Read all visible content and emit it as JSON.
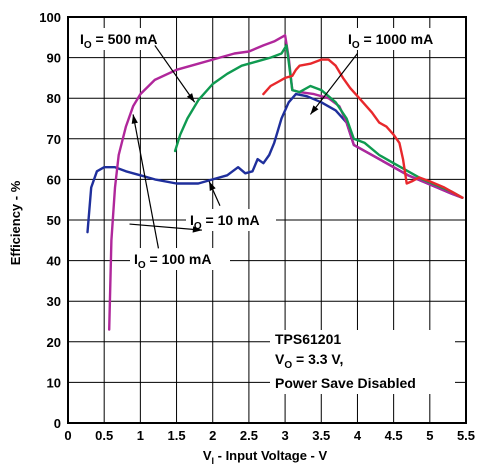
{
  "chart_data": {
    "type": "line",
    "title": "",
    "xlabel": "V_I - Input Voltage - V",
    "xlabel_main": "V",
    "xlabel_sub": "I",
    "xlabel_rest": " - Input Voltage - V",
    "ylabel": "Efficiency - %",
    "xlim": [
      0,
      5.5
    ],
    "ylim": [
      0,
      100
    ],
    "xticks": [
      "0",
      "0.5",
      "1",
      "1.5",
      "2",
      "2.5",
      "3",
      "3.5",
      "4",
      "4.5",
      "5",
      "5.5"
    ],
    "yticks": [
      "0",
      "10",
      "20",
      "30",
      "40",
      "50",
      "60",
      "70",
      "80",
      "90",
      "100"
    ],
    "grid": true,
    "legend": "none",
    "info_box": {
      "line1": "TPS61201",
      "line2_main": "V",
      "line2_sub": "O",
      "line2_rest": " = 3.3 V,",
      "line3": "Power Save Disabled"
    },
    "series": [
      {
        "name": "I_O = 10 mA",
        "label_main": "I",
        "label_sub": "O",
        "label_rest": " = 10 mA",
        "color": "#1f2f9c",
        "x": [
          0.27,
          0.32,
          0.4,
          0.5,
          0.65,
          0.8,
          1.0,
          1.2,
          1.5,
          1.8,
          2.0,
          2.2,
          2.35,
          2.45,
          2.55,
          2.62,
          2.7,
          2.78,
          2.85,
          2.95,
          3.05,
          3.15,
          3.3,
          3.5,
          3.7,
          3.85,
          3.95,
          4.1,
          4.3,
          4.5,
          4.7,
          4.9,
          5.1,
          5.3,
          5.45
        ],
        "y": [
          47,
          58,
          62,
          63,
          63,
          62,
          61,
          60,
          59,
          59,
          60,
          61,
          63,
          61.5,
          62,
          65,
          64,
          66,
          69,
          75,
          79,
          81,
          80.5,
          79,
          77,
          74,
          68.5,
          67,
          65,
          63,
          61,
          59.5,
          58,
          56.5,
          55.5
        ]
      },
      {
        "name": "I_O = 100 mA",
        "label_main": "I",
        "label_sub": "O",
        "label_rest": " = 100 mA",
        "color": "#b0279b",
        "x": [
          0.57,
          0.6,
          0.65,
          0.7,
          0.8,
          0.9,
          1.0,
          1.2,
          1.5,
          1.8,
          2.0,
          2.3,
          2.5,
          2.7,
          2.85,
          2.95,
          3.0,
          3.05,
          3.1,
          3.2,
          3.4,
          3.6,
          3.75,
          3.85,
          3.95,
          4.1,
          4.3,
          4.5,
          4.7,
          4.9,
          5.1,
          5.3,
          5.45
        ],
        "y": [
          23,
          45,
          58,
          66,
          73,
          78,
          81,
          84.5,
          87,
          88.5,
          89.5,
          91,
          91.5,
          93,
          94,
          95,
          95.5,
          90,
          82,
          81.5,
          81,
          80,
          78,
          74,
          68.5,
          67,
          65,
          63,
          61,
          59.5,
          58,
          56.5,
          55.5
        ]
      },
      {
        "name": "I_O = 500 mA",
        "label_main": "I",
        "label_sub": "O",
        "label_rest": " = 500 mA",
        "color": "#0f9a50",
        "x": [
          1.48,
          1.55,
          1.65,
          1.8,
          2.0,
          2.2,
          2.4,
          2.6,
          2.8,
          2.95,
          3.02,
          3.05,
          3.1,
          3.2,
          3.35,
          3.5,
          3.7,
          3.85,
          3.95,
          4.1,
          4.3,
          4.5,
          4.7,
          4.9,
          5.1,
          5.3,
          5.45
        ],
        "y": [
          67,
          71,
          75,
          79.5,
          83.5,
          86,
          88,
          89,
          90,
          91,
          93,
          89,
          82,
          81.5,
          83,
          82,
          79,
          75,
          70,
          69,
          66,
          64,
          62,
          60,
          58.5,
          57,
          55.5
        ]
      },
      {
        "name": "I_O = 1000 mA",
        "label_main": "I",
        "label_sub": "O",
        "label_rest": " = 1000 mA",
        "color": "#e8282c",
        "x": [
          2.7,
          2.8,
          2.9,
          3.0,
          3.1,
          3.15,
          3.2,
          3.35,
          3.5,
          3.6,
          3.7,
          3.8,
          3.9,
          4.0,
          4.1,
          4.2,
          4.3,
          4.4,
          4.5,
          4.58,
          4.63,
          4.68,
          4.75,
          4.85,
          5.0,
          5.2,
          5.45
        ],
        "y": [
          81,
          83,
          84,
          85,
          85.5,
          87,
          88,
          88.5,
          89.5,
          89.5,
          88,
          85,
          82.5,
          80.5,
          78.5,
          76.5,
          74,
          73,
          71,
          69,
          65,
          59,
          59.5,
          60.5,
          59.5,
          58,
          55.5
        ]
      }
    ]
  }
}
